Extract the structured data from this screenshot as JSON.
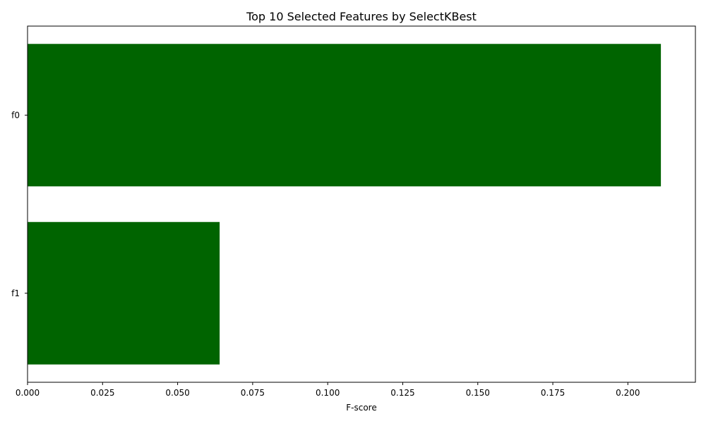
{
  "chart_data": {
    "type": "bar",
    "orientation": "horizontal",
    "title": "Top 10 Selected Features by SelectKBest",
    "xlabel": "F-score",
    "ylabel": "",
    "categories": [
      "f0",
      "f1"
    ],
    "values": [
      0.211,
      0.064
    ],
    "xlim": [
      0,
      0.2225
    ],
    "xticks": [
      0.0,
      0.025,
      0.05,
      0.075,
      0.1,
      0.125,
      0.15,
      0.175,
      0.2
    ],
    "xtick_labels": [
      "0.000",
      "0.025",
      "0.050",
      "0.075",
      "0.100",
      "0.125",
      "0.150",
      "0.175",
      "0.200"
    ],
    "bar_color": "#006400",
    "grid": false,
    "legend": "none"
  }
}
